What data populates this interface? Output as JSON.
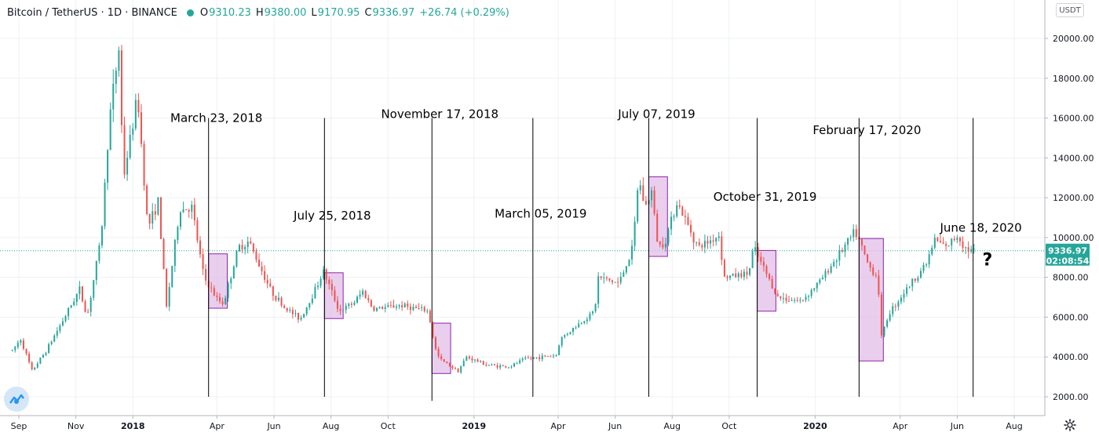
{
  "header": {
    "symbol": "Bitcoin / TetherUS · 1D · BINANCE",
    "open_label": "O",
    "open": "9310.23",
    "high_label": "H",
    "high": "9380.00",
    "low_label": "L",
    "low": "9170.95",
    "close_label": "C",
    "close": "9336.97",
    "change": "+26.74 (+0.29%)"
  },
  "currency": "USDT",
  "colors": {
    "up": "#26a69a",
    "down": "#ef5350",
    "box_fill": "#e1bee7",
    "box_stroke": "#8e24aa",
    "grid": "#eef0f3",
    "price_tag": "#26a69a",
    "annotation": "#000000"
  },
  "chart_data": {
    "type": "candlestick",
    "title": "Bitcoin / TetherUS · 1D · BINANCE",
    "x_range": [
      "2017-08-25",
      "2020-09-05"
    ],
    "ylim": [
      1500,
      21200
    ],
    "y_ticks": [
      "20000.00",
      "18000.00",
      "16000.00",
      "14000.00",
      "12000.00",
      "10000.00",
      "8000.00",
      "6000.00",
      "4000.00",
      "2000.00"
    ],
    "y_tick_values": [
      20000,
      18000,
      16000,
      14000,
      12000,
      10000,
      8000,
      6000,
      4000,
      2000
    ],
    "x_ticks": [
      {
        "date": "2017-09-01",
        "label": "Sep",
        "bold": false
      },
      {
        "date": "2017-11-01",
        "label": "Nov",
        "bold": false
      },
      {
        "date": "2018-01-01",
        "label": "2018",
        "bold": true
      },
      {
        "date": "2018-04-01",
        "label": "Apr",
        "bold": false
      },
      {
        "date": "2018-06-01",
        "label": "Jun",
        "bold": false
      },
      {
        "date": "2018-08-01",
        "label": "Aug",
        "bold": false
      },
      {
        "date": "2018-10-01",
        "label": "Oct",
        "bold": false
      },
      {
        "date": "2019-01-01",
        "label": "2019",
        "bold": true
      },
      {
        "date": "2019-04-01",
        "label": "Apr",
        "bold": false
      },
      {
        "date": "2019-06-01",
        "label": "Jun",
        "bold": false
      },
      {
        "date": "2019-08-01",
        "label": "Aug",
        "bold": false
      },
      {
        "date": "2019-10-01",
        "label": "Oct",
        "bold": false
      },
      {
        "date": "2020-01-01",
        "label": "2020",
        "bold": true
      },
      {
        "date": "2020-04-01",
        "label": "Apr",
        "bold": false
      },
      {
        "date": "2020-06-01",
        "label": "Jun",
        "bold": false
      },
      {
        "date": "2020-08-01",
        "label": "Aug",
        "bold": false
      }
    ],
    "price_path": [
      [
        "2017-08-25",
        4300
      ],
      [
        "2017-09-03",
        4900
      ],
      [
        "2017-09-15",
        3300
      ],
      [
        "2017-09-30",
        4300
      ],
      [
        "2017-10-20",
        6000
      ],
      [
        "2017-11-05",
        7400
      ],
      [
        "2017-11-13",
        6000
      ],
      [
        "2017-11-28",
        10000
      ],
      [
        "2017-12-07",
        16000
      ],
      [
        "2017-12-17",
        19500
      ],
      [
        "2017-12-22",
        13000
      ],
      [
        "2018-01-06",
        17100
      ],
      [
        "2018-01-17",
        10500
      ],
      [
        "2018-01-28",
        11800
      ],
      [
        "2018-02-06",
        6500
      ],
      [
        "2018-02-20",
        11400
      ],
      [
        "2018-03-05",
        11500
      ],
      [
        "2018-03-18",
        8000
      ],
      [
        "2018-04-01",
        6900
      ],
      [
        "2018-04-08",
        6700
      ],
      [
        "2018-04-24",
        9500
      ],
      [
        "2018-05-05",
        9800
      ],
      [
        "2018-05-29",
        7300
      ],
      [
        "2018-06-12",
        6500
      ],
      [
        "2018-06-29",
        5900
      ],
      [
        "2018-07-08",
        6700
      ],
      [
        "2018-07-24",
        8300
      ],
      [
        "2018-08-10",
        6300
      ],
      [
        "2018-08-25",
        6700
      ],
      [
        "2018-09-04",
        7300
      ],
      [
        "2018-09-15",
        6400
      ],
      [
        "2018-10-15",
        6600
      ],
      [
        "2018-11-13",
        6300
      ],
      [
        "2018-11-20",
        4500
      ],
      [
        "2018-11-25",
        3900
      ],
      [
        "2018-12-15",
        3300
      ],
      [
        "2018-12-24",
        4000
      ],
      [
        "2019-01-15",
        3600
      ],
      [
        "2019-02-08",
        3500
      ],
      [
        "2019-02-24",
        3900
      ],
      [
        "2019-03-31",
        4100
      ],
      [
        "2019-04-03",
        4900
      ],
      [
        "2019-05-10",
        6300
      ],
      [
        "2019-05-14",
        8000
      ],
      [
        "2019-06-05",
        7700
      ],
      [
        "2019-06-20",
        9500
      ],
      [
        "2019-06-26",
        13000
      ],
      [
        "2019-07-03",
        11500
      ],
      [
        "2019-07-10",
        12300
      ],
      [
        "2019-07-17",
        9500
      ],
      [
        "2019-07-25",
        9900
      ],
      [
        "2019-08-06",
        11800
      ],
      [
        "2019-08-29",
        9500
      ],
      [
        "2019-09-20",
        10100
      ],
      [
        "2019-09-26",
        8000
      ],
      [
        "2019-10-22",
        8200
      ],
      [
        "2019-10-27",
        9500
      ],
      [
        "2019-11-22",
        7000
      ],
      [
        "2019-12-17",
        6800
      ],
      [
        "2020-01-06",
        7800
      ],
      [
        "2020-02-13",
        10300
      ],
      [
        "2020-02-27",
        8600
      ],
      [
        "2020-03-08",
        8000
      ],
      [
        "2020-03-12",
        5000
      ],
      [
        "2020-03-20",
        6200
      ],
      [
        "2020-04-06",
        7300
      ],
      [
        "2020-04-29",
        8700
      ],
      [
        "2020-05-08",
        9900
      ],
      [
        "2020-05-20",
        9500
      ],
      [
        "2020-06-01",
        10100
      ],
      [
        "2020-06-11",
        9400
      ],
      [
        "2020-06-19",
        9337
      ]
    ],
    "boxes": [
      {
        "from": "2018-03-23",
        "to": "2018-04-12",
        "low": 6450,
        "high": 9180
      },
      {
        "from": "2018-07-25",
        "to": "2018-08-14",
        "low": 5930,
        "high": 8230
      },
      {
        "from": "2018-11-17",
        "to": "2018-12-07",
        "low": 3170,
        "high": 5700
      },
      {
        "from": "2019-07-07",
        "to": "2019-07-27",
        "low": 9050,
        "high": 13050
      },
      {
        "from": "2019-10-31",
        "to": "2019-11-20",
        "low": 6300,
        "high": 9350
      },
      {
        "from": "2020-02-17",
        "to": "2020-03-14",
        "low": 3800,
        "high": 9950
      }
    ],
    "annotations": [
      {
        "date": "2018-03-23",
        "label": "March 23, 2018",
        "label_price": 15800,
        "line_from": 2000,
        "line_to": 16000
      },
      {
        "date": "2018-07-25",
        "label": "July 25, 2018",
        "label_price": 10900,
        "line_from": 2000,
        "line_to": 16000
      },
      {
        "date": "2018-11-17",
        "label": "November 17, 2018",
        "label_price": 16000,
        "line_from": 1800,
        "line_to": 16000
      },
      {
        "date": "2019-03-05",
        "label": "March 05, 2019",
        "label_price": 11000,
        "line_from": 2000,
        "line_to": 16000
      },
      {
        "date": "2019-07-07",
        "label": "July 07, 2019",
        "label_price": 16000,
        "line_from": 2000,
        "line_to": 16000
      },
      {
        "date": "2019-10-31",
        "label": "October 31, 2019",
        "label_price": 11850,
        "line_from": 2000,
        "line_to": 16000
      },
      {
        "date": "2020-02-17",
        "label": "February 17, 2020",
        "label_price": 15200,
        "line_from": 2000,
        "line_to": 16000
      },
      {
        "date": "2020-06-18",
        "label": "June 18, 2020",
        "label_price": 10300,
        "line_from": 2000,
        "line_to": 16000
      }
    ],
    "question_mark": {
      "label": "?",
      "date": "2020-06-28",
      "price": 8600
    },
    "last_price": {
      "value": 9336.97,
      "label": "9336.97",
      "countdown": "02:08:54"
    }
  }
}
